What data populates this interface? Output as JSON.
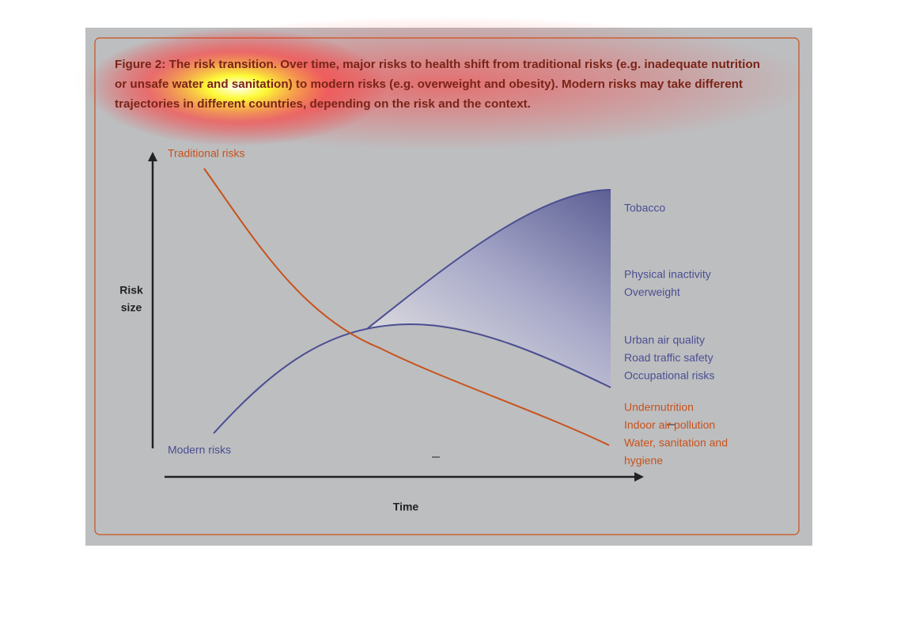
{
  "figure": {
    "caption_lines": [
      "Figure 2: The risk transition. Over time, major risks to health shift from traditional risks (e.g. inadequate nutrition",
      "or unsafe water and sanitation) to modern risks (e.g. overweight and obesity). Modern risks may take different",
      "trajectories in different countries, depending on the risk and the context."
    ],
    "y_axis_label": [
      "Risk",
      "size"
    ],
    "x_axis_label": "Time",
    "traditional_label": "Traditional risks",
    "modern_label": "Modern risks",
    "modern_groups": [
      [
        "Tobacco"
      ],
      [
        "Physical inactivity",
        "Overweight"
      ],
      [
        "Urban air quality",
        "Road traffic safety",
        "Occupational risks"
      ]
    ],
    "traditional_group": [
      "Undernutrition",
      "Indoor air pollution",
      "Water, sanitation and",
      "hygiene"
    ]
  }
}
